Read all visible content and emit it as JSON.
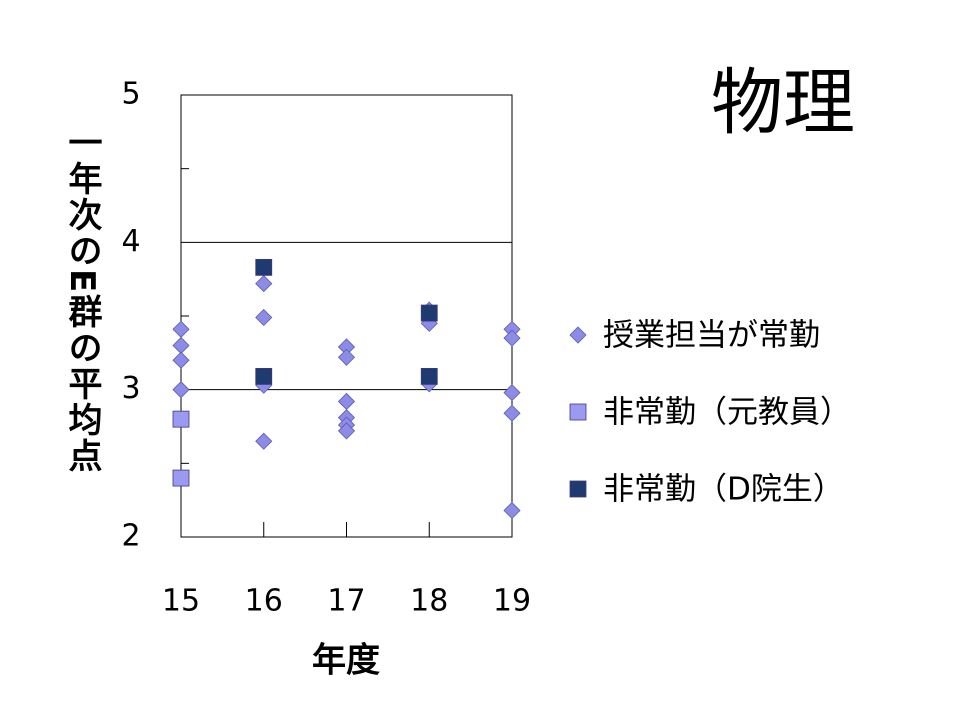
{
  "chart_data": {
    "type": "scatter",
    "title": "物理",
    "xlabel": "年度",
    "ylabel": "一年次のE群の平均点",
    "xlim": [
      15,
      19
    ],
    "xticks": [
      15,
      16,
      17,
      18,
      19
    ],
    "ylim": [
      2,
      5
    ],
    "yticks": [
      2,
      3,
      4,
      5
    ],
    "grid": true,
    "legend": "right",
    "series": [
      {
        "name": "授業担当が常勤",
        "color": "#8c8ce6",
        "marker": "diamond",
        "x": [
          15,
          15,
          15,
          15,
          16,
          16,
          16,
          16,
          17,
          17,
          17,
          17,
          17,
          17,
          18,
          18,
          18,
          19,
          19,
          19,
          19,
          19
        ],
        "values": [
          3.41,
          3.3,
          3.2,
          3.0,
          3.72,
          3.49,
          3.03,
          2.65,
          3.29,
          3.22,
          2.92,
          2.81,
          2.76,
          2.72,
          3.54,
          3.45,
          3.04,
          3.41,
          3.35,
          2.98,
          2.84,
          2.18
        ]
      },
      {
        "name": "非常勤（元教員）",
        "color": "#9a9af0",
        "marker": "square",
        "x": [
          15,
          15
        ],
        "values": [
          2.8,
          2.4
        ]
      },
      {
        "name": "非常勤（D院生）",
        "color": "#1f3a70",
        "marker": "square",
        "x": [
          16,
          16,
          18,
          18
        ],
        "values": [
          3.83,
          3.09,
          3.52,
          3.09
        ]
      }
    ]
  }
}
